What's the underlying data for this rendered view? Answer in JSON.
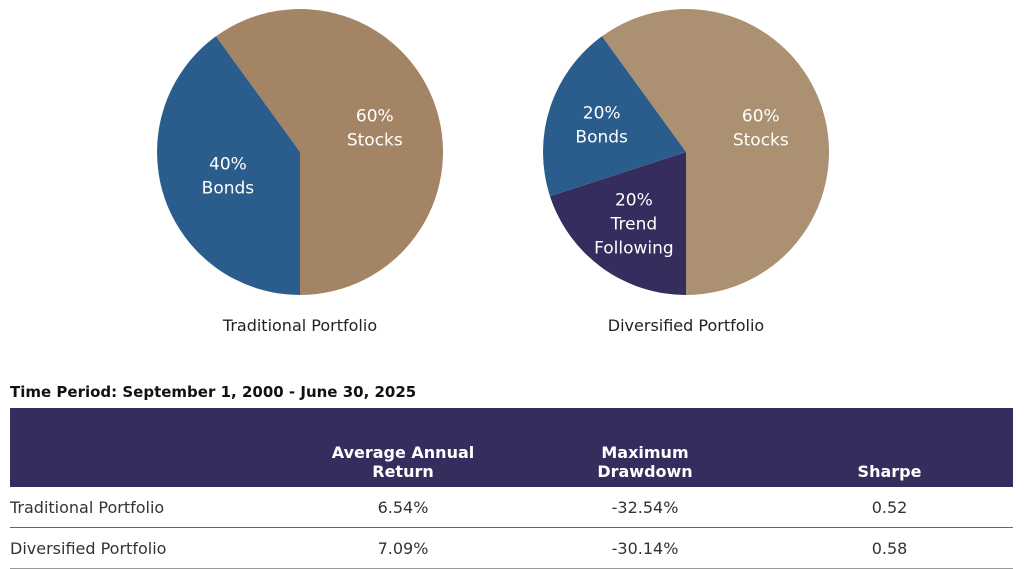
{
  "chart_data": [
    {
      "type": "pie",
      "title": "Traditional Portfolio",
      "slices": [
        {
          "label": "Stocks",
          "value": 60,
          "display": "60%",
          "color": "#a38566"
        },
        {
          "label": "Bonds",
          "value": 40,
          "display": "40%",
          "color": "#2a5d8c"
        }
      ]
    },
    {
      "type": "pie",
      "title": "Diversified Portfolio",
      "slices": [
        {
          "label": "Stocks",
          "value": 60,
          "display": "60%",
          "color": "#ab9072"
        },
        {
          "label": "Trend Following",
          "value": 20,
          "display": "20%",
          "color": "#352d5e"
        },
        {
          "label": "Bonds",
          "value": 20,
          "display": "20%",
          "color": "#2a5d8c"
        }
      ]
    }
  ],
  "table": {
    "period": "Time Period: September 1, 2000 - June 30, 2025",
    "headers": [
      "",
      "Average Annual Return",
      "Maximum Drawdown",
      "Sharpe"
    ],
    "rows": [
      [
        "Traditional Portfolio",
        "6.54%",
        "-32.54%",
        "0.52"
      ],
      [
        "Diversified Portfolio",
        "7.09%",
        "-30.14%",
        "0.58"
      ]
    ],
    "header_color": "#352d5e"
  }
}
